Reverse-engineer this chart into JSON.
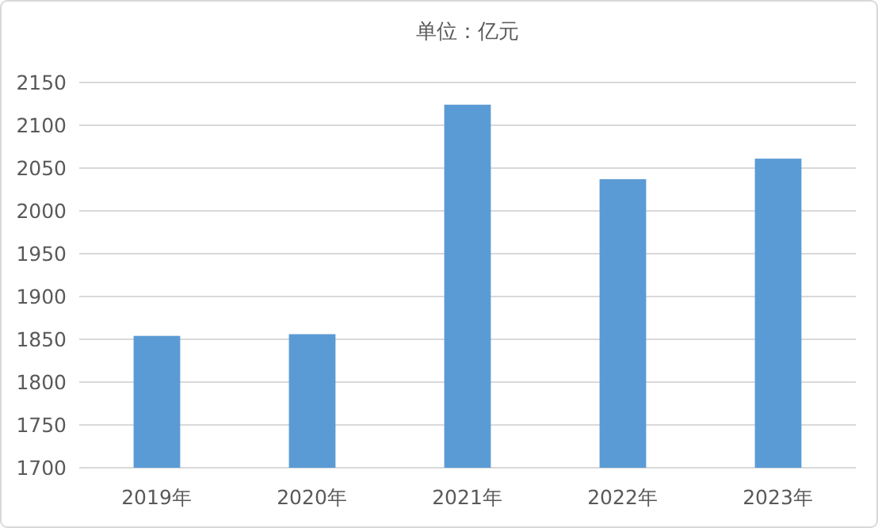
{
  "chart_data": {
    "type": "bar",
    "title": "单位：亿元",
    "categories": [
      "2019年",
      "2020年",
      "2021年",
      "2022年",
      "2023年"
    ],
    "values": [
      1854,
      1856,
      2124,
      2037,
      2061
    ],
    "color": "#5b9bd5",
    "ylim": [
      1700,
      2150
    ],
    "yticks": [
      1700,
      1750,
      1800,
      1850,
      1900,
      1950,
      2000,
      2050,
      2100,
      2150
    ],
    "grid": "y"
  }
}
